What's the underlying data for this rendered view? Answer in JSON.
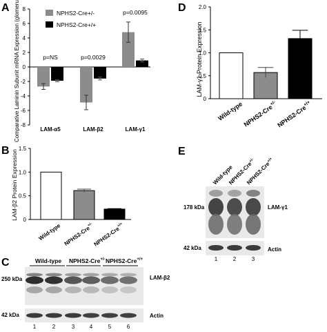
{
  "panels": {
    "A": {
      "letter": "A"
    },
    "B": {
      "letter": "B"
    },
    "C": {
      "letter": "C"
    },
    "D": {
      "letter": "D"
    },
    "E": {
      "letter": "E"
    }
  },
  "chart_data": [
    {
      "panel": "A",
      "type": "bar",
      "ylabel": "Comparative Laminin Subunit mRNA Expression (glomeruli)",
      "ylim": [
        -8,
        8
      ],
      "yticks": [
        -8,
        -6,
        -4,
        -2,
        0,
        2,
        4,
        6,
        8
      ],
      "categories": [
        "LAM-α5",
        "LAM-β2",
        "LAM-γ1"
      ],
      "series": [
        {
          "name": "NPHS2-Cre+/-",
          "color": "#8c8c8c",
          "values": [
            -2.7,
            -4.9,
            4.8
          ],
          "errors": [
            0.4,
            1.0,
            1.4
          ]
        },
        {
          "name": "NPHS2-Cre+/+",
          "color": "#000000",
          "values": [
            -1.9,
            -1.6,
            0.9
          ],
          "errors": [
            0.15,
            0.2,
            0.2
          ]
        }
      ],
      "annotations": [
        "p=NS",
        "p=0.0029",
        "p=0.0095"
      ],
      "legend": "top-left"
    },
    {
      "panel": "B",
      "type": "bar",
      "ylabel": "LAM-β2 Protein Expression",
      "ylim": [
        0,
        1.5
      ],
      "yticks": [
        "0",
        "0.5",
        "1.0",
        "1.5"
      ],
      "categories": [
        "Wild-type",
        "NPHS2-Cre+/-",
        "NPHS2-Cre+/+"
      ],
      "values": [
        1.0,
        0.61,
        0.22
      ],
      "errors": [
        0,
        0.03,
        0.01
      ],
      "colors": [
        "#ffffff",
        "#8c8c8c",
        "#000000"
      ]
    },
    {
      "panel": "D",
      "type": "bar",
      "ylabel": "LAM-γ1 Protein Expression",
      "ylim": [
        0,
        2.0
      ],
      "yticks": [
        "0",
        "0.5",
        "1.0",
        "1.5",
        "2.0"
      ],
      "categories": [
        "Wild-type",
        "NPHS2-Cre+/-",
        "NPHS2-Cre+/+"
      ],
      "values": [
        1.0,
        0.57,
        1.31
      ],
      "errors": [
        0,
        0.11,
        0.18
      ],
      "colors": [
        "#ffffff",
        "#8c8c8c",
        "#000000"
      ]
    }
  ],
  "blots": {
    "C": {
      "headers": [
        "Wild-type",
        "NPHS2-Cre",
        "NPHS2-Cre"
      ],
      "header_sups": [
        "",
        "+/-",
        "+/+"
      ],
      "bands": [
        {
          "kda": "250 kDa",
          "label": "LAM-β2"
        },
        {
          "kda": "42 kDa",
          "label": "Actin"
        }
      ],
      "lanes": [
        "1",
        "2",
        "3",
        "4",
        "5",
        "6"
      ]
    },
    "E": {
      "headers": [
        "Wild-type",
        "NPHS2-Cre",
        "NPHS2-Cre"
      ],
      "header_sups": [
        "",
        "+/-",
        "+/+"
      ],
      "bands": [
        {
          "kda": "178 kDa",
          "label": "LAM-γ1"
        },
        {
          "kda": "42 kDa",
          "label": "Actin"
        }
      ],
      "lanes": [
        "1",
        "2",
        "3"
      ]
    }
  }
}
